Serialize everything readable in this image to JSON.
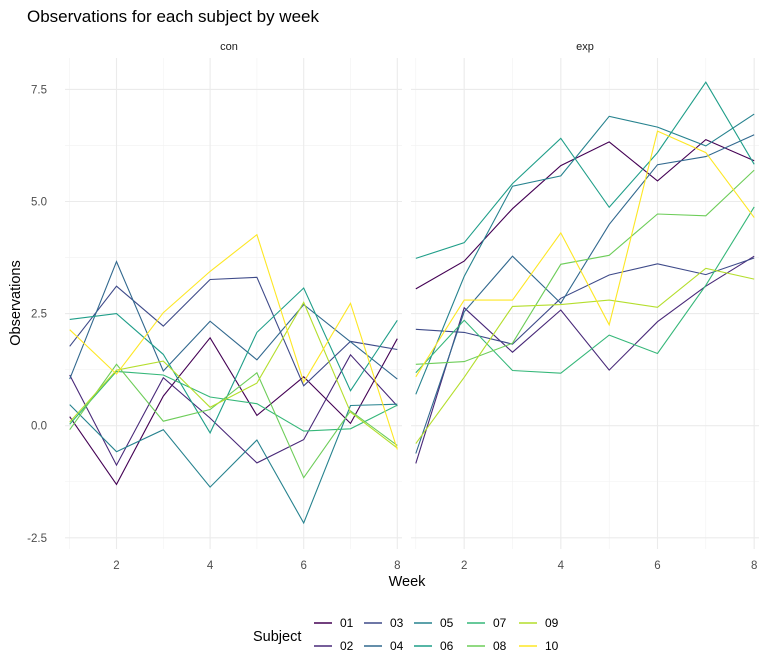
{
  "chart_data": {
    "type": "line",
    "title": "Observations for each subject by week",
    "xlabel": "Week",
    "ylabel": "Observations",
    "legend_title": "Subject",
    "legend_position": "bottom",
    "grid": true,
    "xlim": [
      0.9,
      8.1
    ],
    "ylim": [
      -2.75,
      8.2
    ],
    "x_ticks": [
      2,
      4,
      6,
      8
    ],
    "y_ticks": [
      -2.5,
      0.0,
      2.5,
      5.0,
      7.5
    ],
    "y_tick_labels": [
      "-2.5",
      "0.0",
      "2.5",
      "5.0",
      "7.5"
    ],
    "x": [
      1,
      2,
      3,
      4,
      5,
      6,
      7,
      8
    ],
    "series_colors": {
      "01": "#440154",
      "02": "#482878",
      "03": "#3E4A89",
      "04": "#31688E",
      "05": "#26828E",
      "06": "#1F9E89",
      "07": "#35B779",
      "08": "#6DCD59",
      "09": "#B4DE2C",
      "10": "#FDE725"
    },
    "series_order": [
      "01",
      "02",
      "03",
      "04",
      "05",
      "06",
      "07",
      "08",
      "09",
      "10"
    ],
    "panels": [
      {
        "name": "con",
        "series": [
          {
            "name": "01",
            "values": [
              0.2,
              -1.31,
              0.66,
              1.96,
              0.23,
              1.09,
              0.05,
              1.94
            ]
          },
          {
            "name": "02",
            "values": [
              1.13,
              -0.88,
              1.07,
              0.17,
              -0.83,
              -0.31,
              1.58,
              0.44
            ]
          },
          {
            "name": "03",
            "values": [
              1.77,
              3.11,
              2.22,
              3.26,
              3.31,
              0.89,
              1.88,
              1.7
            ]
          },
          {
            "name": "04",
            "values": [
              1.04,
              3.66,
              1.22,
              2.33,
              1.47,
              2.7,
              1.87,
              1.04
            ]
          },
          {
            "name": "05",
            "values": [
              0.47,
              -0.58,
              -0.09,
              -1.37,
              -0.32,
              -2.17,
              0.45,
              0.48
            ]
          },
          {
            "name": "06",
            "values": [
              2.37,
              2.5,
              1.59,
              -0.16,
              2.08,
              3.07,
              0.78,
              2.35
            ]
          },
          {
            "name": "07",
            "values": [
              0.03,
              1.21,
              1.13,
              0.64,
              0.49,
              -0.12,
              -0.07,
              0.46
            ]
          },
          {
            "name": "08",
            "values": [
              -0.09,
              1.37,
              0.1,
              0.36,
              1.18,
              -1.16,
              0.33,
              -0.44
            ]
          },
          {
            "name": "09",
            "values": [
              0.08,
              1.24,
              1.44,
              0.41,
              0.95,
              2.75,
              0.3,
              -0.5
            ]
          },
          {
            "name": "10",
            "values": [
              2.14,
              1.15,
              2.52,
              3.44,
              4.26,
              0.97,
              2.73,
              -0.53
            ]
          }
        ]
      },
      {
        "name": "exp",
        "series": [
          {
            "name": "01",
            "values": [
              3.05,
              3.67,
              4.84,
              5.8,
              6.33,
              5.46,
              6.38,
              5.91
            ]
          },
          {
            "name": "02",
            "values": [
              -0.84,
              2.63,
              1.64,
              2.58,
              1.24,
              2.32,
              3.11,
              3.78
            ]
          },
          {
            "name": "03",
            "values": [
              2.15,
              2.08,
              1.82,
              2.84,
              3.36,
              3.61,
              3.37,
              3.74
            ]
          },
          {
            "name": "04",
            "values": [
              -0.62,
              2.54,
              3.78,
              2.73,
              4.49,
              5.82,
              6.0,
              6.49
            ]
          },
          {
            "name": "05",
            "values": [
              0.7,
              3.33,
              5.34,
              5.57,
              6.9,
              6.66,
              6.24,
              6.95
            ]
          },
          {
            "name": "06",
            "values": [
              3.73,
              4.08,
              5.4,
              6.41,
              4.87,
              6.09,
              7.66,
              5.83
            ]
          },
          {
            "name": "07",
            "values": [
              1.18,
              2.35,
              1.23,
              1.17,
              2.02,
              1.61,
              3.13,
              4.88
            ]
          },
          {
            "name": "08",
            "values": [
              1.37,
              1.43,
              1.84,
              3.6,
              3.8,
              4.72,
              4.68,
              5.7
            ]
          },
          {
            "name": "09",
            "values": [
              -0.4,
              1.08,
              2.66,
              2.7,
              2.8,
              2.64,
              3.51,
              3.27
            ]
          },
          {
            "name": "10",
            "values": [
              1.09,
              2.8,
              2.8,
              4.3,
              2.25,
              6.57,
              6.09,
              4.64
            ]
          }
        ]
      }
    ]
  }
}
